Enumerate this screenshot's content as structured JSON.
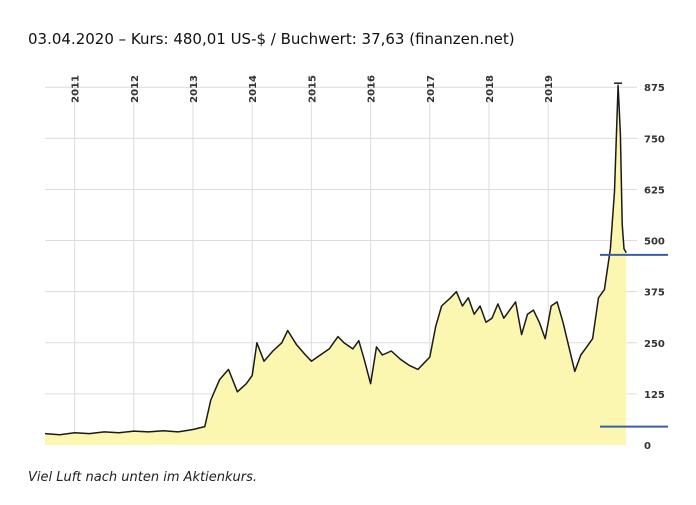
{
  "chart_data": {
    "type": "area",
    "title": "03.04.2020 – Kurs: 480,01 US-$ / Buchwert: 37,63 (finanzen.net)",
    "caption": "Viel Luft nach unten im Aktienkurs.",
    "xlabel": "",
    "ylabel": "",
    "x_ticks": [
      "2011",
      "2012",
      "2013",
      "2014",
      "2015",
      "2016",
      "2017",
      "2018",
      "2019"
    ],
    "y_ticks": [
      "0",
      "125",
      "250",
      "375",
      "500",
      "625",
      "750",
      "875"
    ],
    "xlim": [
      2010.5,
      2020.5
    ],
    "ylim": [
      0,
      900
    ],
    "grid": true,
    "fill_color": "#fbf7b0",
    "line_color": "#1a1a1a",
    "reference_lines": [
      {
        "value": 465,
        "color": "#3a5fa8"
      },
      {
        "value": 45,
        "color": "#3a5fa8"
      }
    ],
    "series": [
      {
        "x": [
          2010.5,
          2010.75,
          2011.0,
          2011.25,
          2011.5,
          2011.75,
          2012.0,
          2012.25,
          2012.5,
          2012.75,
          2013.0,
          2013.2,
          2013.3,
          2013.45,
          2013.6,
          2013.75,
          2013.9,
          2014.0,
          2014.08,
          2014.2,
          2014.35,
          2014.5,
          2014.6,
          2014.75,
          2014.9,
          2015.0,
          2015.15,
          2015.3,
          2015.45,
          2015.55,
          2015.7,
          2015.8,
          2015.9,
          2016.0,
          2016.1,
          2016.2,
          2016.35,
          2016.5,
          2016.65,
          2016.8,
          2016.9,
          2017.0,
          2017.1,
          2017.2,
          2017.35,
          2017.45,
          2017.55,
          2017.65,
          2017.75,
          2017.85,
          2017.95,
          2018.05,
          2018.15,
          2018.25,
          2018.35,
          2018.45,
          2018.55,
          2018.65,
          2018.75,
          2018.85,
          2018.95,
          2019.05,
          2019.15,
          2019.25,
          2019.35,
          2019.45,
          2019.55,
          2019.65,
          2019.75,
          2019.85,
          2019.95,
          2020.05,
          2020.12,
          2020.18,
          2020.22,
          2020.25,
          2020.28,
          2020.32
        ],
        "y": [
          28,
          25,
          30,
          28,
          32,
          30,
          34,
          32,
          35,
          32,
          38,
          45,
          110,
          160,
          185,
          130,
          150,
          170,
          250,
          205,
          230,
          250,
          280,
          245,
          220,
          205,
          220,
          235,
          265,
          250,
          235,
          255,
          205,
          150,
          240,
          220,
          230,
          210,
          195,
          185,
          200,
          215,
          290,
          340,
          360,
          375,
          340,
          360,
          320,
          340,
          300,
          310,
          345,
          310,
          330,
          350,
          270,
          320,
          330,
          300,
          260,
          340,
          350,
          300,
          240,
          180,
          220,
          240,
          260,
          360,
          380,
          480,
          620,
          880,
          760,
          540,
          480,
          470
        ]
      }
    ]
  }
}
